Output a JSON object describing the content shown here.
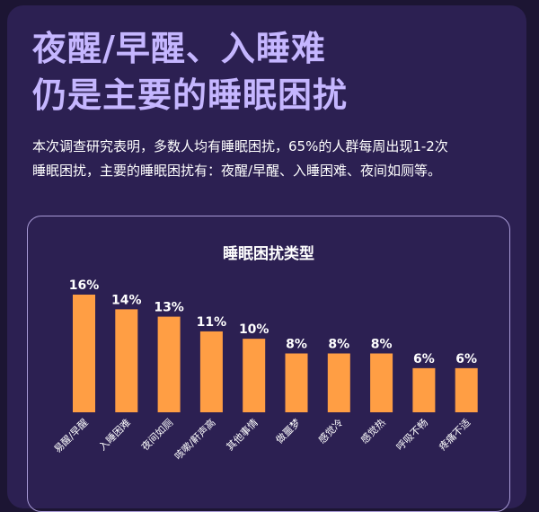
{
  "header": {
    "title_line1": "夜醒/早醒、入睡难",
    "title_line2": "仍是主要的睡眠困扰"
  },
  "intro": {
    "line1": "本次调查研究表明，多数人均有睡眠困扰，65%的人群每周出现1-2次",
    "line2": "睡眠困扰，主要的睡眠困扰有：夜醒/早醒、入睡困难、夜间如厕等。"
  },
  "colors": {
    "background": "#1c1533",
    "card": "#2c2052",
    "title": "#c5b6ff",
    "bar": "#ff9e44"
  },
  "chart_data": {
    "type": "bar",
    "title": "睡眠困扰类型",
    "categories": [
      "易醒/早醒",
      "入睡困难",
      "夜间如厕",
      "咳嗽/鼾声高",
      "其他事情",
      "做噩梦",
      "感觉冷",
      "感觉热",
      "呼吸不畅",
      "疼痛不适"
    ],
    "values": [
      16,
      14,
      13,
      11,
      10,
      8,
      8,
      8,
      6,
      6
    ],
    "value_labels": [
      "16%",
      "14%",
      "13%",
      "11%",
      "10%",
      "8%",
      "8%",
      "8%",
      "6%",
      "6%"
    ],
    "xlabel": "",
    "ylabel": "",
    "ylim": [
      0,
      16
    ],
    "grid": false
  }
}
